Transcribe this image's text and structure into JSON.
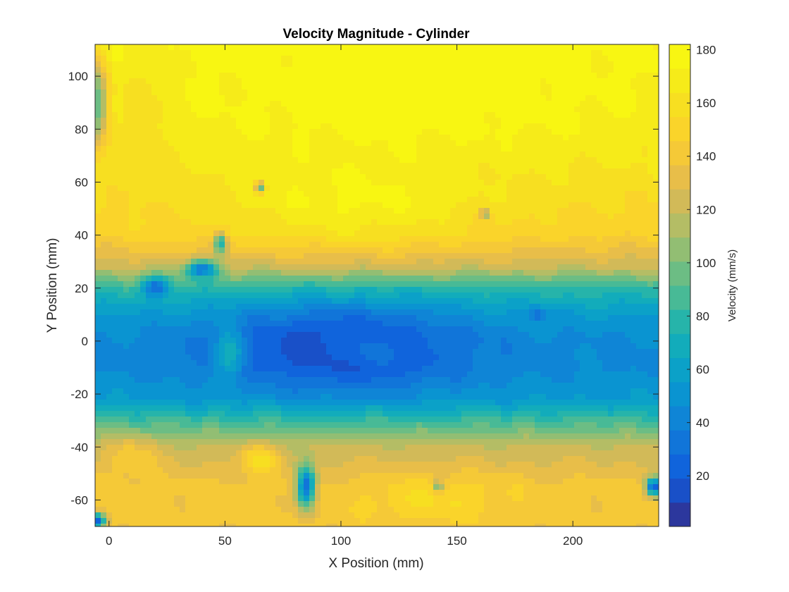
{
  "chart_data": {
    "type": "heatmap",
    "title": "Velocity Magnitude - Cylinder",
    "xlabel": "X Position (mm)",
    "ylabel": "Y Position (mm)",
    "xlim": [
      -6,
      237
    ],
    "ylim": [
      -70,
      112
    ],
    "xticks": [
      0,
      50,
      100,
      150,
      200
    ],
    "yticks": [
      -60,
      -40,
      -20,
      0,
      20,
      40,
      60,
      80,
      100
    ],
    "colorbar": {
      "label": "Velocity (mm/s)",
      "range": [
        1,
        182
      ],
      "ticks": [
        20,
        40,
        60,
        80,
        100,
        120,
        140,
        160,
        180
      ],
      "colormap": "parula",
      "levels": 20
    },
    "field": {
      "description_of_values": "velocity magnitude in mm/s",
      "background": [
        {
          "y": 112,
          "v": 175
        },
        {
          "y": 80,
          "v": 170
        },
        {
          "y": 60,
          "v": 160
        },
        {
          "y": 40,
          "v": 148
        },
        {
          "y": 28,
          "v": 120
        },
        {
          "y": 20,
          "v": 80
        },
        {
          "y": 10,
          "v": 55
        },
        {
          "y": 0,
          "v": 45
        },
        {
          "y": -10,
          "v": 45
        },
        {
          "y": -22,
          "v": 55
        },
        {
          "y": -30,
          "v": 85
        },
        {
          "y": -40,
          "v": 120
        },
        {
          "y": -55,
          "v": 140
        },
        {
          "y": -70,
          "v": 140
        }
      ],
      "features": [
        {
          "x": 100,
          "y": -3,
          "rx": 75,
          "ry": 22,
          "v": 8
        },
        {
          "x": 115,
          "y": -3,
          "rx": 35,
          "ry": 12,
          "v": 30
        },
        {
          "x": 52,
          "y": -5,
          "rx": 9,
          "ry": 14,
          "v": 70
        },
        {
          "x": 130,
          "y": 95,
          "rx": 100,
          "ry": 30,
          "v": 180
        },
        {
          "x": 105,
          "y": 55,
          "rx": 80,
          "ry": 25,
          "v": 175
        },
        {
          "x": 15,
          "y": 75,
          "rx": 14,
          "ry": 45,
          "v": 155
        },
        {
          "x": -5,
          "y": 90,
          "rx": 7,
          "ry": 25,
          "v": 90
        },
        {
          "x": 65,
          "y": 58,
          "rx": 3,
          "ry": 3,
          "v": 80
        },
        {
          "x": 162,
          "y": 48,
          "rx": 3,
          "ry": 3,
          "v": 100
        },
        {
          "x": 48,
          "y": 37,
          "rx": 4,
          "ry": 6,
          "v": 80
        },
        {
          "x": 20,
          "y": 20,
          "rx": 8,
          "ry": 6,
          "v": 30
        },
        {
          "x": 40,
          "y": 27,
          "rx": 10,
          "ry": 5,
          "v": 35
        },
        {
          "x": 185,
          "y": 10,
          "rx": 5,
          "ry": 4,
          "v": 30
        },
        {
          "x": 10,
          "y": -45,
          "rx": 15,
          "ry": 12,
          "v": 145
        },
        {
          "x": 65,
          "y": -45,
          "rx": 12,
          "ry": 8,
          "v": 160
        },
        {
          "x": 85,
          "y": -55,
          "rx": 6,
          "ry": 12,
          "v": 25
        },
        {
          "x": 140,
          "y": -60,
          "rx": 45,
          "ry": 12,
          "v": 155
        },
        {
          "x": 142,
          "y": -55,
          "rx": 3,
          "ry": 3,
          "v": 90
        },
        {
          "x": 235,
          "y": -55,
          "rx": 5,
          "ry": 5,
          "v": 20
        },
        {
          "x": -5,
          "y": -68,
          "rx": 5,
          "ry": 4,
          "v": 20
        }
      ]
    }
  }
}
